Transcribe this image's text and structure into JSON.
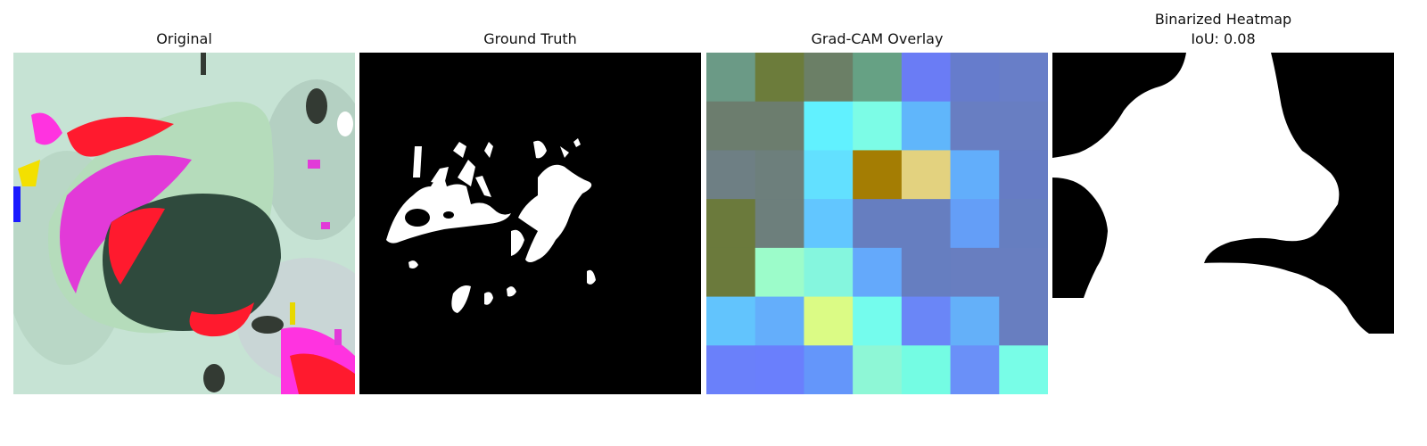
{
  "panels": [
    {
      "title": "Original"
    },
    {
      "title": "Ground Truth"
    },
    {
      "title": "Grad-CAM Overlay"
    },
    {
      "title": "Binarized Heatmap",
      "subtitle": "IoU: 0.08"
    }
  ],
  "gradcam_grid": {
    "rows": 7,
    "cols": 7,
    "colors": [
      [
        "#6b9a86",
        "#6c7c3b",
        "#6b7f66",
        "#66a184",
        "#6a7cf5",
        "#667ccc",
        "#687ec8"
      ],
      [
        "#6c7d6e",
        "#6c7d6e",
        "#61f1ff",
        "#7cfce6",
        "#60b6fb",
        "#687ec2",
        "#687ec2"
      ],
      [
        "#6e7f84",
        "#6d7f7c",
        "#62e0ff",
        "#a47d03",
        "#e3d27f",
        "#62aefb",
        "#667cc4"
      ],
      [
        "#6b7a3c",
        "#6d7f7c",
        "#62c6ff",
        "#667ec0",
        "#667ec0",
        "#649ef7",
        "#667ec0"
      ],
      [
        "#6b7a3c",
        "#9cfcca",
        "#85f6de",
        "#64a9fb",
        "#667ec0",
        "#687ec0",
        "#687ec0"
      ],
      [
        "#62c4fd",
        "#64aefb",
        "#dbfb85",
        "#74fced",
        "#6a86f7",
        "#64b0f9",
        "#687ec0"
      ],
      [
        "#6a80fa",
        "#6a7ffc",
        "#6496fa",
        "#8ef7d6",
        "#74fce3",
        "#6a90f8",
        "#78fde7"
      ]
    ]
  }
}
